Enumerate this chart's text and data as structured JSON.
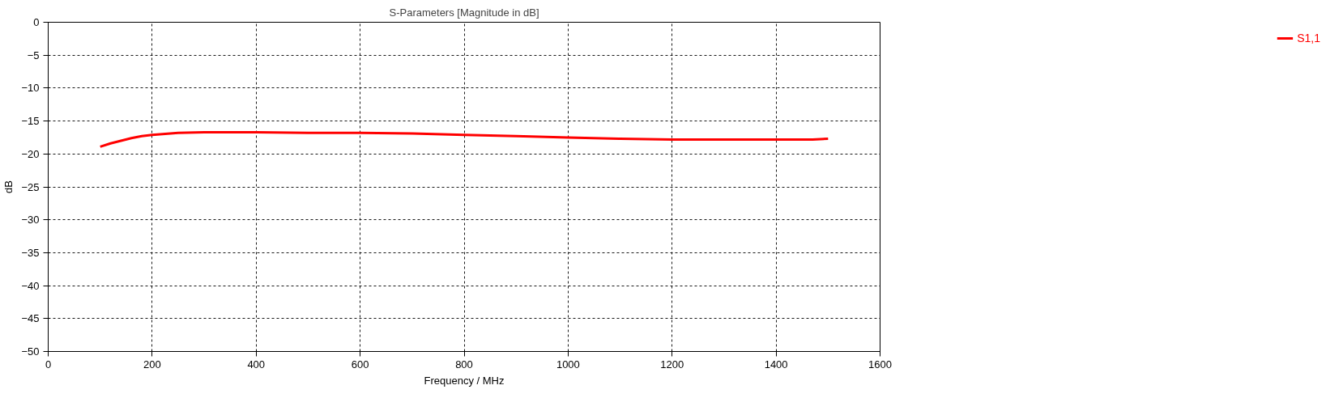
{
  "chart_data": {
    "type": "line",
    "title": "S-Parameters [Magnitude in dB]",
    "xlabel": "Frequency / MHz",
    "ylabel": "dB",
    "x": [
      100,
      120,
      140,
      160,
      180,
      200,
      250,
      300,
      400,
      500,
      600,
      700,
      800,
      900,
      1000,
      1100,
      1200,
      1300,
      1400,
      1470,
      1500
    ],
    "series": [
      {
        "name": "S1,1",
        "color": "#ff0000",
        "values": [
          -18.9,
          -18.4,
          -18.0,
          -17.6,
          -17.3,
          -17.1,
          -16.8,
          -16.7,
          -16.7,
          -16.8,
          -16.8,
          -16.9,
          -17.1,
          -17.3,
          -17.5,
          -17.7,
          -17.8,
          -17.8,
          -17.8,
          -17.8,
          -17.7
        ]
      }
    ],
    "xlim": [
      0,
      1600
    ],
    "xticks": [
      0,
      200,
      400,
      600,
      800,
      1000,
      1200,
      1400,
      1600
    ],
    "ylim": [
      -50,
      0
    ],
    "yticks": [
      -50,
      -45,
      -40,
      -35,
      -30,
      -25,
      -20,
      -15,
      -10,
      -5,
      0
    ],
    "grid": true,
    "legend": "top right",
    "line_style": "solid"
  }
}
